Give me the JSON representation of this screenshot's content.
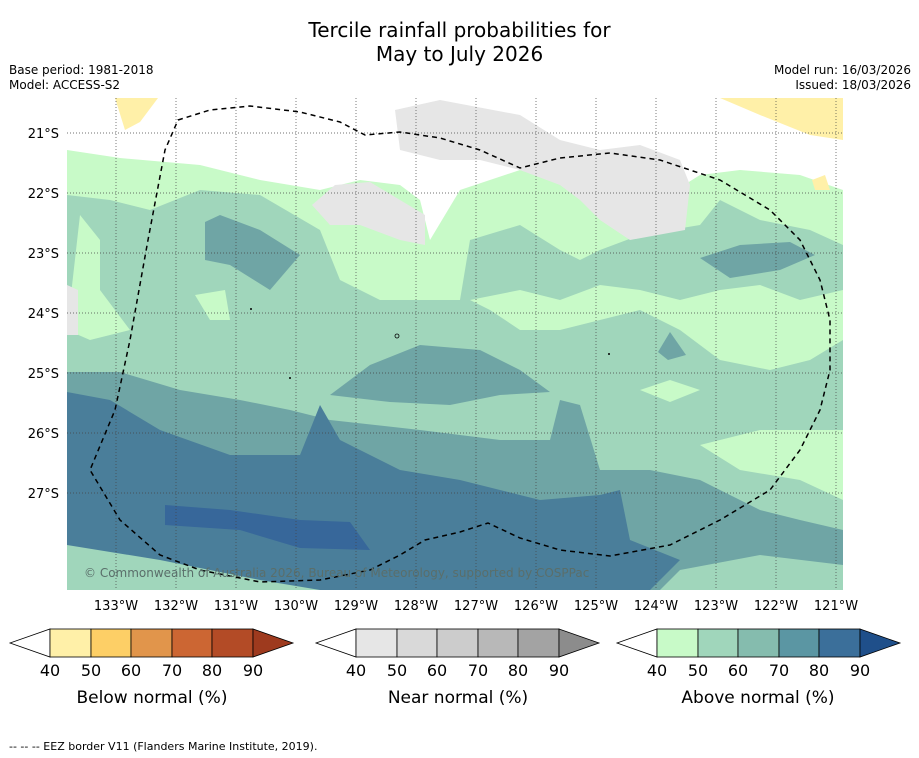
{
  "title_line1": "Tercile rainfall probabilities for",
  "title_line2": "May to July 2026",
  "base_period": "Base period: 1981-2018",
  "model": "Model: ACCESS-S2",
  "model_run": "Model run: 16/03/2026",
  "issued": "Issued: 18/03/2026",
  "copyright": "© Commonwealth of Australia 2026, Bureau of Meteorology, supported by COSPPac",
  "lat_labels": [
    "21°S",
    "22°S",
    "23°S",
    "24°S",
    "25°S",
    "26°S",
    "27°S"
  ],
  "lon_labels": [
    "133°W",
    "132°W",
    "131°W",
    "130°W",
    "129°W",
    "128°W",
    "127°W",
    "126°W",
    "125°W",
    "124°W",
    "123°W",
    "122°W",
    "121°W"
  ],
  "colorbars": [
    {
      "label": "Below normal (%)",
      "ticks": [
        "40",
        "50",
        "60",
        "70",
        "80",
        "90"
      ],
      "colors": [
        "#fff0a8",
        "#fdcf66",
        "#e1954b",
        "#cc6633",
        "#b34b26",
        "#9e3a1e"
      ]
    },
    {
      "label": "Near normal (%)",
      "ticks": [
        "40",
        "50",
        "60",
        "70",
        "80",
        "90"
      ],
      "colors": [
        "#e6e6e6",
        "#d9d9d9",
        "#cccccc",
        "#b8b8b8",
        "#a3a3a3",
        "#8c8c8c"
      ]
    },
    {
      "label": "Above normal (%)",
      "ticks": [
        "40",
        "50",
        "60",
        "70",
        "80",
        "90"
      ],
      "colors": [
        "#c8fac8",
        "#a0d6bb",
        "#85bcae",
        "#5b96a3",
        "#3b6f9a",
        "#1f4f8a"
      ]
    }
  ],
  "footnote": "--  --  -- EEZ border V11 (Flanders Marine Institute, 2019)."
}
